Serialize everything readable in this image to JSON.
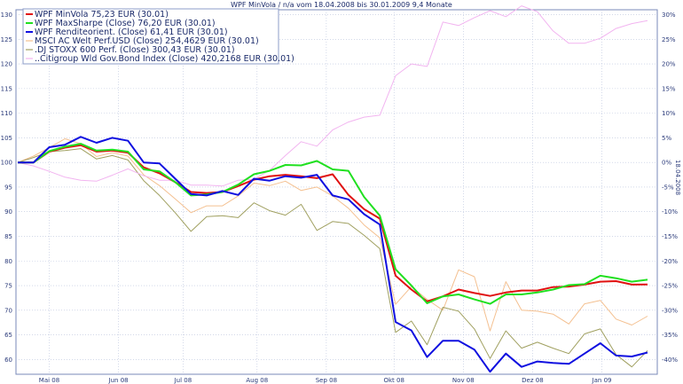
{
  "chart_data": {
    "type": "line",
    "title": "WPF MinVola / n/a vom 18.04.2008 bis 30.01.2009 9,4 Monate",
    "side_label": "18.04.2008",
    "x_ticks": [
      "Mai 08",
      "Jun 08",
      "Jul 08",
      "Aug 08",
      "Sep 08",
      "Okt 08",
      "Nov 08",
      "Dez 08",
      "Jan 09"
    ],
    "y_left_ticks": [
      60,
      65,
      70,
      75,
      80,
      85,
      90,
      95,
      100,
      105,
      110,
      115,
      120,
      125,
      130
    ],
    "y_right_ticks": [
      "-40%",
      "-35%",
      "-30%",
      "-25%",
      "-20%",
      "-15%",
      "-10%",
      "-5%",
      "0%",
      "5%",
      "10%",
      "15%",
      "20%",
      "25%",
      "30%"
    ],
    "ylim": [
      57,
      131
    ],
    "xlim": [
      0,
      41
    ],
    "legend_placement": "top-left",
    "grid": true,
    "series": [
      {
        "name": "WPF MinVola 75,23 EUR (30.01)",
        "color": "#e01010",
        "width": 2,
        "values": [
          100,
          100,
          102.2,
          103,
          103.5,
          102.2,
          102.4,
          102,
          99,
          97.8,
          96,
          94,
          93.8,
          94,
          95.2,
          96.5,
          97.2,
          97.5,
          97.2,
          96.8,
          97.6,
          93.4,
          90.5,
          88.6,
          77,
          74.2,
          71.8,
          72.8,
          74.2,
          73.5,
          72.9,
          73.6,
          74,
          74,
          74.7,
          74.8,
          75.2,
          75.8,
          75.9,
          75.2,
          75.23
        ]
      },
      {
        "name": "WPF MaxSharpe (Close) 76,20 EUR (30.01)",
        "color": "#20e020",
        "width": 2,
        "values": [
          100,
          100,
          102.3,
          103.2,
          103.8,
          102.4,
          102.6,
          102.2,
          98.6,
          98.2,
          96,
          93.3,
          93.5,
          94,
          95.5,
          97.6,
          98.3,
          99.5,
          99.4,
          100.3,
          98.6,
          98.3,
          93,
          89.2,
          78.3,
          75,
          71.4,
          72.8,
          73.2,
          72.2,
          71.3,
          73.2,
          73.2,
          73.6,
          74.2,
          75.1,
          75.3,
          77,
          76.5,
          75.8,
          76.2
        ]
      },
      {
        "name": "WPF Renditeorient. (Close) 61,41 EUR (30.01)",
        "color": "#1010e0",
        "width": 2,
        "values": [
          100,
          100,
          103.1,
          103.6,
          105.2,
          104,
          105,
          104.4,
          100,
          99.8,
          96.7,
          93.6,
          93.3,
          94.2,
          93.4,
          96.7,
          96.3,
          97.2,
          96.9,
          97.5,
          93.3,
          92.5,
          89.5,
          87.4,
          67.6,
          65.9,
          60.5,
          63.8,
          63.8,
          62,
          57.5,
          61.2,
          58.5,
          59.6,
          59.3,
          59.1,
          61.2,
          63.3,
          60.8,
          60.6,
          61.41
        ]
      },
      {
        "name": "MSCI AC Welt Perf.USD (Close) 254,4629 EUR (30.01)",
        "color": "#f4c090",
        "width": 1,
        "values": [
          100,
          101.3,
          103,
          104.8,
          103.8,
          101.2,
          102,
          101.3,
          97.5,
          95.3,
          92.6,
          89.8,
          91.2,
          91.2,
          93.2,
          95.8,
          95.3,
          96.2,
          94.3,
          95,
          93.2,
          90.7,
          87.3,
          84.7,
          71.2,
          74.8,
          72.2,
          70,
          78.2,
          76.8,
          65.8,
          75.8,
          70,
          69.8,
          69.2,
          67.2,
          71.3,
          72,
          68.2,
          67,
          68.8
        ]
      },
      {
        "name": ".DJ STOXX 600 Perf. (Close) 300,43 EUR (30.01)",
        "color": "#a0a060",
        "width": 1,
        "values": [
          100,
          101,
          102.2,
          102.4,
          102.8,
          100.7,
          101.4,
          100.5,
          96.3,
          93.3,
          89.8,
          86,
          89,
          89.2,
          88.8,
          91.8,
          90.2,
          89.3,
          91.5,
          86.2,
          88,
          87.6,
          85.2,
          82.5,
          65.5,
          67.8,
          63,
          70.6,
          69.8,
          66.2,
          60.2,
          65.8,
          62.3,
          63.5,
          62.3,
          61.2,
          65.2,
          66.2,
          61,
          58.5,
          61.8
        ]
      },
      {
        "name": "..Citigroup Wld Gov.Bond Index (Close) 420,2168 EUR (30.01)",
        "color": "#f2b4f0",
        "width": 1,
        "values": [
          100,
          99.3,
          98.2,
          97,
          96.4,
          96.2,
          97.4,
          98.7,
          97.3,
          96.4,
          96.4,
          95.4,
          95.4,
          95.2,
          96.4,
          96.6,
          98.4,
          101.4,
          104.2,
          103.3,
          106.6,
          108.2,
          109.2,
          109.6,
          117.6,
          120,
          119.5,
          128.5,
          127.8,
          129.4,
          130.8,
          129.6,
          131.8,
          130.6,
          126.7,
          124.2,
          124.2,
          125.2,
          127.2,
          128.2,
          128.8
        ]
      }
    ]
  }
}
